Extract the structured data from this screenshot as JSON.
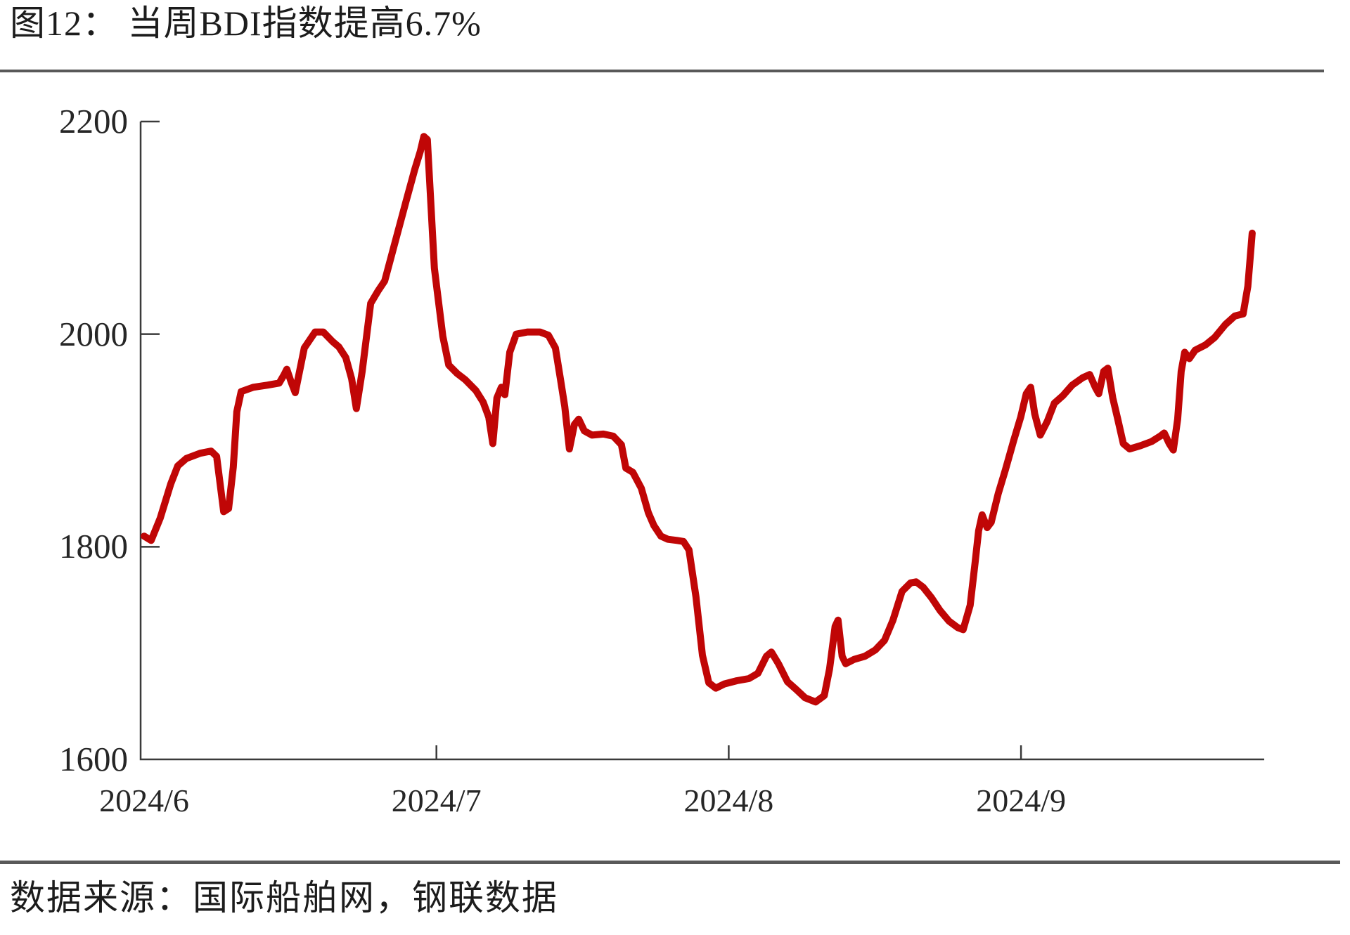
{
  "page": {
    "title": "图12： 当周BDI指数提高6.7%",
    "source": "数据来源：国际船舶网，钢联数据"
  },
  "colors": {
    "line": "#c00606",
    "axis": "#3a3a3a",
    "rule": "#595959",
    "text": "#1c1c1c"
  },
  "chart_data": {
    "type": "line",
    "title": "当周BDI指数提高6.7%",
    "grid": false,
    "legend": "none",
    "x_axis": {
      "tick_values": [
        6,
        7,
        8,
        9
      ],
      "tick_labels": [
        "2024/6",
        "2024/7",
        "2024/8",
        "2024/9"
      ],
      "unit": "month of 2024"
    },
    "y_axis": {
      "min": 1600,
      "max": 2200,
      "tick_values": [
        1600,
        1800,
        2000,
        2200
      ],
      "tick_labels": [
        "1600",
        "1800",
        "2000",
        "2200"
      ]
    },
    "series": [
      {
        "name": "BDI指数",
        "color": "#c00606",
        "points": [
          [
            6.0,
            1810
          ],
          [
            6.024,
            1806
          ],
          [
            6.055,
            1827
          ],
          [
            6.091,
            1859
          ],
          [
            6.115,
            1876
          ],
          [
            6.144,
            1883
          ],
          [
            6.192,
            1888
          ],
          [
            6.229,
            1890
          ],
          [
            6.248,
            1885
          ],
          [
            6.272,
            1833
          ],
          [
            6.289,
            1836
          ],
          [
            6.305,
            1875
          ],
          [
            6.317,
            1927
          ],
          [
            6.332,
            1946
          ],
          [
            6.373,
            1950
          ],
          [
            6.421,
            1952
          ],
          [
            6.462,
            1954
          ],
          [
            6.479,
            1962
          ],
          [
            6.488,
            1967
          ],
          [
            6.503,
            1955
          ],
          [
            6.517,
            1945
          ],
          [
            6.548,
            1987
          ],
          [
            6.585,
            2002
          ],
          [
            6.613,
            2002
          ],
          [
            6.645,
            1993
          ],
          [
            6.666,
            1988
          ],
          [
            6.69,
            1978
          ],
          [
            6.71,
            1958
          ],
          [
            6.726,
            1930
          ],
          [
            6.746,
            1965
          ],
          [
            6.775,
            2029
          ],
          [
            6.801,
            2041
          ],
          [
            6.823,
            2050
          ],
          [
            6.861,
            2089
          ],
          [
            6.895,
            2124
          ],
          [
            6.926,
            2155
          ],
          [
            6.945,
            2172
          ],
          [
            6.957,
            2186
          ],
          [
            6.969,
            2183
          ],
          [
            6.993,
            2062
          ],
          [
            7.003,
            2040
          ],
          [
            7.022,
            1998
          ],
          [
            7.042,
            1971
          ],
          [
            7.071,
            1963
          ],
          [
            7.099,
            1957
          ],
          [
            7.135,
            1947
          ],
          [
            7.16,
            1936
          ],
          [
            7.179,
            1922
          ],
          [
            7.193,
            1897
          ],
          [
            7.207,
            1940
          ],
          [
            7.222,
            1950
          ],
          [
            7.234,
            1943
          ],
          [
            7.251,
            1983
          ],
          [
            7.273,
            2000
          ],
          [
            7.311,
            2002
          ],
          [
            7.354,
            2002
          ],
          [
            7.383,
            1999
          ],
          [
            7.407,
            1987
          ],
          [
            7.424,
            1958
          ],
          [
            7.439,
            1932
          ],
          [
            7.455,
            1892
          ],
          [
            7.472,
            1915
          ],
          [
            7.487,
            1920
          ],
          [
            7.506,
            1909
          ],
          [
            7.532,
            1905
          ],
          [
            7.571,
            1906
          ],
          [
            7.605,
            1904
          ],
          [
            7.633,
            1896
          ],
          [
            7.648,
            1874
          ],
          [
            7.672,
            1870
          ],
          [
            7.701,
            1855
          ],
          [
            7.725,
            1832
          ],
          [
            7.744,
            1820
          ],
          [
            7.768,
            1810
          ],
          [
            7.792,
            1807
          ],
          [
            7.823,
            1806
          ],
          [
            7.845,
            1805
          ],
          [
            7.864,
            1797
          ],
          [
            7.888,
            1753
          ],
          [
            7.91,
            1698
          ],
          [
            7.932,
            1672
          ],
          [
            7.956,
            1667
          ],
          [
            7.985,
            1671
          ],
          [
            8.028,
            1674
          ],
          [
            8.069,
            1676
          ],
          [
            8.1,
            1681
          ],
          [
            8.129,
            1697
          ],
          [
            8.146,
            1701
          ],
          [
            8.17,
            1690
          ],
          [
            8.201,
            1673
          ],
          [
            8.23,
            1666
          ],
          [
            8.261,
            1658
          ],
          [
            8.297,
            1654
          ],
          [
            8.327,
            1660
          ],
          [
            8.345,
            1685
          ],
          [
            8.364,
            1725
          ],
          [
            8.374,
            1731
          ],
          [
            8.388,
            1697
          ],
          [
            8.4,
            1690
          ],
          [
            8.429,
            1694
          ],
          [
            8.466,
            1697
          ],
          [
            8.502,
            1703
          ],
          [
            8.533,
            1712
          ],
          [
            8.562,
            1731
          ],
          [
            8.593,
            1758
          ],
          [
            8.622,
            1766
          ],
          [
            8.641,
            1767
          ],
          [
            8.665,
            1762
          ],
          [
            8.694,
            1752
          ],
          [
            8.723,
            1740
          ],
          [
            8.754,
            1730
          ],
          [
            8.783,
            1724
          ],
          [
            8.802,
            1722
          ],
          [
            8.826,
            1745
          ],
          [
            8.843,
            1785
          ],
          [
            8.855,
            1815
          ],
          [
            8.867,
            1830
          ],
          [
            8.884,
            1818
          ],
          [
            8.898,
            1823
          ],
          [
            8.922,
            1850
          ],
          [
            8.946,
            1872
          ],
          [
            8.975,
            1900
          ],
          [
            8.999,
            1922
          ],
          [
            9.018,
            1944
          ],
          [
            9.033,
            1950
          ],
          [
            9.047,
            1925
          ],
          [
            9.066,
            1905
          ],
          [
            9.09,
            1918
          ],
          [
            9.114,
            1935
          ],
          [
            9.143,
            1942
          ],
          [
            9.175,
            1952
          ],
          [
            9.211,
            1959
          ],
          [
            9.235,
            1962
          ],
          [
            9.254,
            1950
          ],
          [
            9.266,
            1944
          ],
          [
            9.283,
            1965
          ],
          [
            9.297,
            1968
          ],
          [
            9.314,
            1940
          ],
          [
            9.331,
            1920
          ],
          [
            9.35,
            1897
          ],
          [
            9.372,
            1892
          ],
          [
            9.408,
            1895
          ],
          [
            9.447,
            1899
          ],
          [
            9.476,
            1904
          ],
          [
            9.49,
            1907
          ],
          [
            9.507,
            1897
          ],
          [
            9.521,
            1891
          ],
          [
            9.536,
            1920
          ],
          [
            9.548,
            1965
          ],
          [
            9.56,
            1983
          ],
          [
            9.576,
            1977
          ],
          [
            9.596,
            1985
          ],
          [
            9.632,
            1990
          ],
          [
            9.663,
            1997
          ],
          [
            9.699,
            2009
          ],
          [
            9.731,
            2017
          ],
          [
            9.76,
            2019
          ],
          [
            9.776,
            2045
          ],
          [
            9.791,
            2095
          ]
        ]
      }
    ]
  }
}
